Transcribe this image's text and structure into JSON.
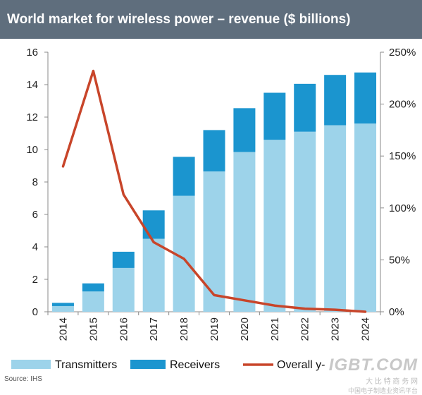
{
  "title": "World market for wireless power – revenue ($ billions)",
  "source": "Source: IHS",
  "watermark": {
    "logo": "IGBT.COM",
    "line1": "大 比 特 商 务 网",
    "line2": "中国电子制造业资讯平台"
  },
  "colors": {
    "title_bar": "#5f6e7d",
    "transmitters": "#9dd3ea",
    "receivers": "#1b95cf",
    "growth_line": "#c8452a"
  },
  "chart_data": {
    "type": "bar",
    "stacked": true,
    "categories": [
      "2014",
      "2015",
      "2016",
      "2017",
      "2018",
      "2019",
      "2020",
      "2021",
      "2022",
      "2023",
      "2024"
    ],
    "series": [
      {
        "name": "Transmitters",
        "type": "bar",
        "axis": "left",
        "values": [
          0.35,
          1.25,
          2.7,
          4.5,
          7.15,
          8.65,
          9.85,
          10.6,
          11.1,
          11.5,
          11.6
        ]
      },
      {
        "name": "Receivers",
        "type": "bar",
        "axis": "left",
        "values": [
          0.2,
          0.5,
          1.0,
          1.75,
          2.4,
          2.55,
          2.7,
          2.9,
          2.95,
          3.1,
          3.15
        ]
      },
      {
        "name": "Overall y-o-y growth (%)",
        "type": "line",
        "axis": "right",
        "values": [
          140,
          232,
          113,
          67,
          51,
          16,
          11,
          6,
          3,
          2,
          0
        ]
      }
    ],
    "ylim_left": [
      0,
      16
    ],
    "yticks_left": [
      "0",
      "2",
      "4",
      "6",
      "8",
      "10",
      "12",
      "14",
      "16"
    ],
    "ylim_right": [
      0,
      250
    ],
    "yticks_right": [
      "0%",
      "50%",
      "100%",
      "150%",
      "200%",
      "250%"
    ],
    "grid": false,
    "legend_position": "bottom",
    "legend": {
      "transmitters": "Transmitters",
      "receivers": "Receivers",
      "growth": "Overall y-o-y growth (%)"
    }
  }
}
